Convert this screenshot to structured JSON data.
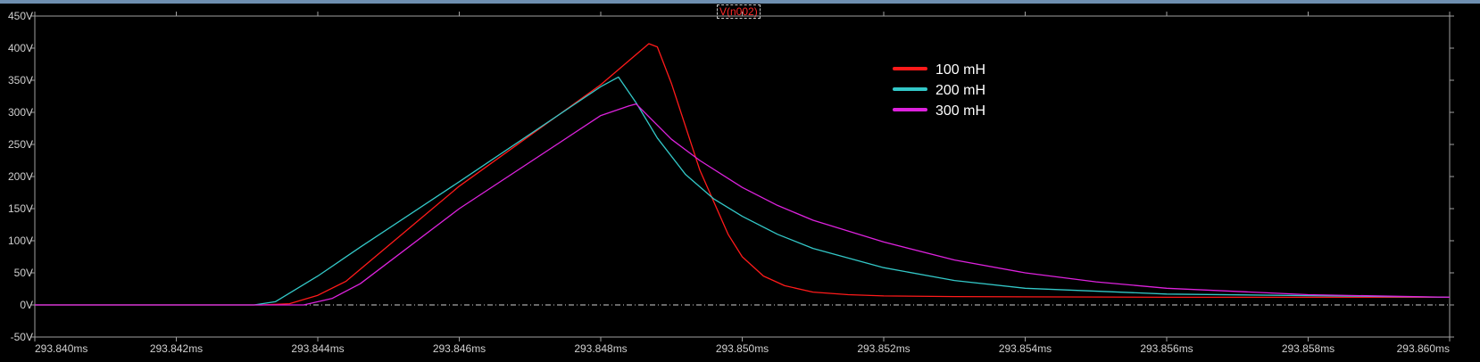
{
  "chart_data": {
    "type": "line",
    "title": "V(n002)",
    "xlabel": "",
    "ylabel": "",
    "xlim": [
      293.84,
      293.86
    ],
    "ylim": [
      -50,
      450
    ],
    "x_ticks": [
      "293.840ms",
      "293.842ms",
      "293.844ms",
      "293.846ms",
      "293.848ms",
      "293.850ms",
      "293.852ms",
      "293.854ms",
      "293.856ms",
      "293.858ms",
      "293.860ms"
    ],
    "y_ticks": [
      "-50V",
      "0V",
      "50V",
      "100V",
      "150V",
      "200V",
      "250V",
      "300V",
      "350V",
      "400V",
      "450V"
    ],
    "legend_position": "top-right",
    "grid": false,
    "series": [
      {
        "name": "100 mH",
        "color": "#ff1a1a",
        "x": [
          293.84,
          293.8432,
          293.8436,
          293.844,
          293.8444,
          293.846,
          293.848,
          293.84868,
          293.8488,
          293.849,
          293.8494,
          293.8498,
          293.85,
          293.8503,
          293.8506,
          293.851,
          293.8515,
          293.852,
          293.853,
          293.856,
          293.86
        ],
        "y": [
          0,
          0,
          2,
          15,
          37,
          185,
          343,
          407,
          402,
          345,
          210,
          110,
          75,
          45,
          30,
          20,
          16,
          14,
          13,
          12,
          12
        ]
      },
      {
        "name": "200 mH",
        "color": "#33c8c8",
        "x": [
          293.84,
          293.8431,
          293.8434,
          293.844,
          293.8446,
          293.846,
          293.848,
          293.84825,
          293.8485,
          293.8488,
          293.8492,
          293.8496,
          293.85,
          293.8505,
          293.851,
          293.852,
          293.853,
          293.854,
          293.856,
          293.86
        ],
        "y": [
          0,
          0,
          5,
          45,
          90,
          192,
          340,
          355,
          315,
          260,
          203,
          165,
          138,
          110,
          88,
          58,
          38,
          26,
          17,
          12
        ]
      },
      {
        "name": "300 mH",
        "color": "#dd22dd",
        "x": [
          293.84,
          293.8438,
          293.8442,
          293.8446,
          293.846,
          293.848,
          293.8484,
          293.8485,
          293.849,
          293.8494,
          293.85,
          293.8505,
          293.851,
          293.852,
          293.853,
          293.854,
          293.855,
          293.856,
          293.858,
          293.86
        ],
        "y": [
          0,
          0,
          10,
          33,
          150,
          295,
          310,
          313,
          258,
          225,
          183,
          155,
          132,
          98,
          70,
          50,
          36,
          26,
          16,
          12
        ]
      }
    ]
  }
}
